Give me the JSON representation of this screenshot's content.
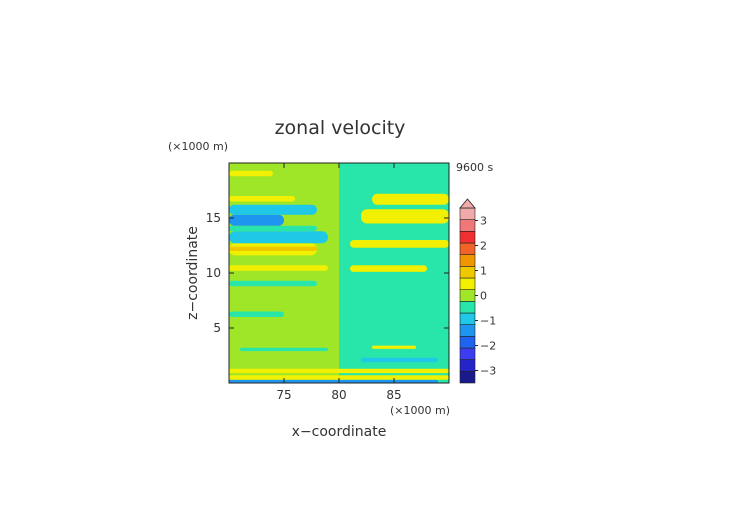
{
  "chart_data": {
    "type": "heatmap",
    "title": "zonal velocity",
    "xlabel": "x−coordinate",
    "ylabel": "z−coordinate",
    "x_unit": "(×1000 m)",
    "y_unit": "(×1000 m)",
    "time_label": "9600 s",
    "xlim": [
      70,
      90
    ],
    "ylim": [
      0,
      20
    ],
    "xticks": [
      75,
      80,
      85
    ],
    "yticks": [
      5,
      10,
      15
    ],
    "colorbar": {
      "levels": [
        -3.5,
        -3,
        -2.5,
        -2,
        -1.5,
        -1,
        -0.5,
        0,
        0.5,
        1,
        1.5,
        2,
        2.5,
        3,
        3.5
      ],
      "colors": [
        "#1a1a8c",
        "#2424c8",
        "#3c3cf0",
        "#1e64f0",
        "#1e96f0",
        "#1ec8e6",
        "#28e6aa",
        "#a0e628",
        "#f0f000",
        "#f0c800",
        "#f09600",
        "#f06428",
        "#f03030",
        "#f07878",
        "#f0aaaa"
      ],
      "tick_labels": [
        "−3",
        "−2",
        "−1",
        "0",
        "1",
        "2",
        "3"
      ],
      "tick_values": [
        -3,
        -2,
        -1,
        0,
        1,
        2,
        3
      ],
      "extend": "max"
    },
    "background_left_value": 0.25,
    "background_right_value": -0.25,
    "bands": [
      {
        "x0": 70,
        "x1": 89,
        "z0": 0.0,
        "z1": 0.3,
        "value": -1.3
      },
      {
        "x0": 70,
        "x1": 90,
        "z0": 0.3,
        "z1": 0.7,
        "value": 0.75
      },
      {
        "x0": 70,
        "x1": 90,
        "z0": 0.9,
        "z1": 1.3,
        "value": 0.75
      },
      {
        "x0": 82,
        "x1": 89,
        "z0": 1.9,
        "z1": 2.3,
        "value": -0.75
      },
      {
        "x0": 71,
        "x1": 79,
        "z0": 2.9,
        "z1": 3.2,
        "value": -0.25
      },
      {
        "x0": 83,
        "x1": 87,
        "z0": 3.1,
        "z1": 3.4,
        "value": 0.75
      },
      {
        "x0": 70,
        "x1": 75,
        "z0": 6.0,
        "z1": 6.5,
        "value": -0.25
      },
      {
        "x0": 70,
        "x1": 78,
        "z0": 8.8,
        "z1": 9.3,
        "value": -0.25
      },
      {
        "x0": 70,
        "x1": 79,
        "z0": 10.2,
        "z1": 10.7,
        "value": 0.75
      },
      {
        "x0": 81,
        "x1": 88,
        "z0": 10.1,
        "z1": 10.7,
        "value": 0.75
      },
      {
        "x0": 70,
        "x1": 78,
        "z0": 11.6,
        "z1": 12.7,
        "value": 0.75
      },
      {
        "x0": 70,
        "x1": 78,
        "z0": 12.0,
        "z1": 12.4,
        "value": 1.25
      },
      {
        "x0": 70,
        "x1": 79,
        "z0": 12.7,
        "z1": 13.8,
        "value": -0.75
      },
      {
        "x0": 81,
        "x1": 90,
        "z0": 12.3,
        "z1": 13.0,
        "value": 0.75
      },
      {
        "x0": 70,
        "x1": 78,
        "z0": 13.8,
        "z1": 14.3,
        "value": -0.25
      },
      {
        "x0": 70,
        "x1": 75,
        "z0": 14.3,
        "z1": 15.3,
        "value": -1.25
      },
      {
        "x0": 70,
        "x1": 78,
        "z0": 15.3,
        "z1": 16.2,
        "value": -0.75
      },
      {
        "x0": 82,
        "x1": 90,
        "z0": 14.5,
        "z1": 15.8,
        "value": 0.75
      },
      {
        "x0": 83,
        "x1": 90,
        "z0": 16.2,
        "z1": 17.2,
        "value": 0.75
      },
      {
        "x0": 70,
        "x1": 76,
        "z0": 16.5,
        "z1": 17.0,
        "value": 0.75
      },
      {
        "x0": 70,
        "x1": 74,
        "z0": 18.8,
        "z1": 19.3,
        "value": 0.75
      }
    ]
  }
}
